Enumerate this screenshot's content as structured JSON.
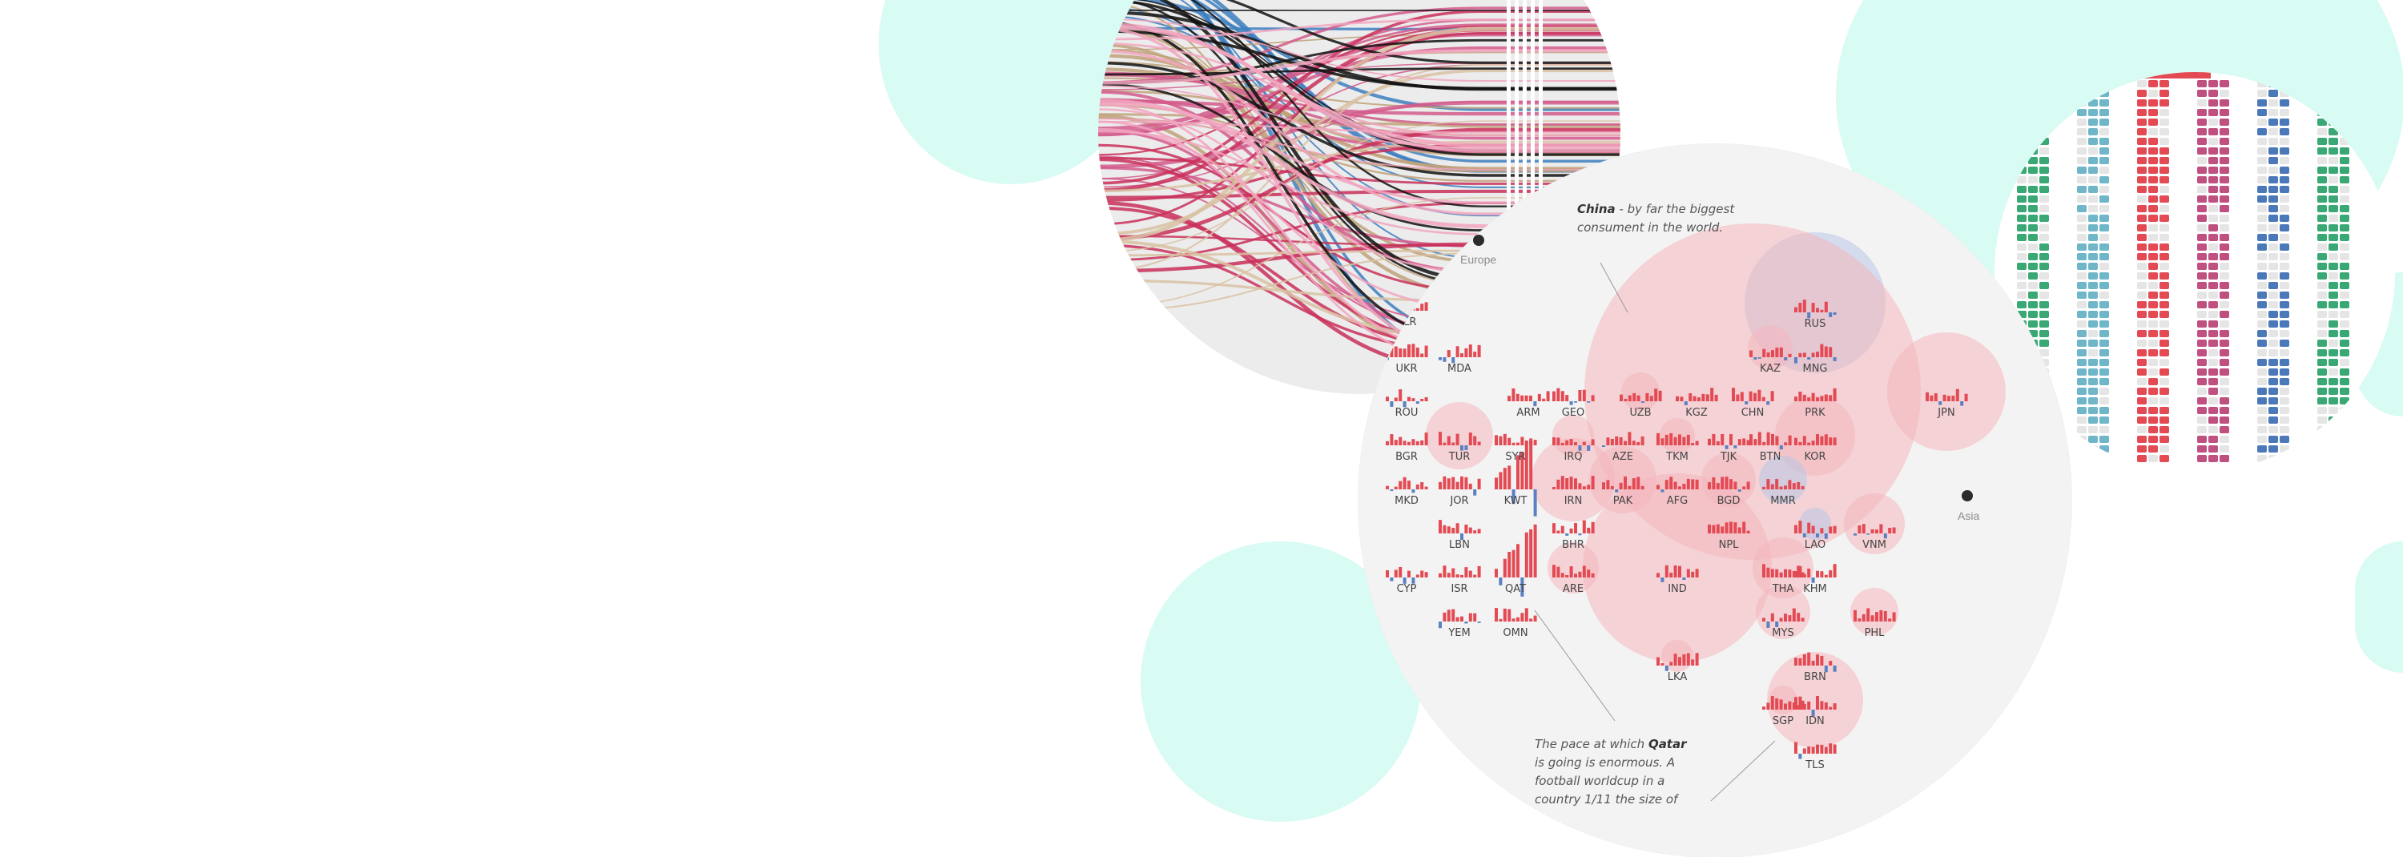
{
  "colors": {
    "mint": "#d8fbf3",
    "bubble": "#f4b7be",
    "bubble_blue": "#b8c7e6",
    "bar_red": "#e34a53",
    "bar_blue": "#5b7fc1",
    "lens_bg": "#f3f3f3"
  },
  "map": {
    "regions": {
      "europe": "Europe",
      "asia": "Asia"
    },
    "annotations": {
      "china": {
        "bold": "China",
        "text": " - by far the biggest consument in the world."
      },
      "qatar": {
        "prefix": "The pace at which ",
        "bold": "Qatar",
        "text": " is going is enormous. A football worldcup in a country 1/11 the size of"
      }
    },
    "countries": [
      {
        "code": "BLR",
        "bubble": 0
      },
      {
        "code": "RUS",
        "bubble": 88
      },
      {
        "code": "UKR",
        "bubble": 0
      },
      {
        "code": "MDA",
        "bubble": 0
      },
      {
        "code": "KAZ",
        "bubble": 28
      },
      {
        "code": "MNG",
        "bubble": 0
      },
      {
        "code": "ROU",
        "bubble": 0
      },
      {
        "code": "ARM",
        "bubble": 0
      },
      {
        "code": "GEO",
        "bubble": 0
      },
      {
        "code": "UZB",
        "bubble": 24
      },
      {
        "code": "KGZ",
        "bubble": 0
      },
      {
        "code": "CHN",
        "bubble": 210
      },
      {
        "code": "PRK",
        "bubble": 0
      },
      {
        "code": "JPN",
        "bubble": 74
      },
      {
        "code": "BGR",
        "bubble": 0
      },
      {
        "code": "TUR",
        "bubble": 42
      },
      {
        "code": "SYR",
        "bubble": 0
      },
      {
        "code": "IRQ",
        "bubble": 26
      },
      {
        "code": "AZE",
        "bubble": 0
      },
      {
        "code": "TKM",
        "bubble": 22
      },
      {
        "code": "TJK",
        "bubble": 0
      },
      {
        "code": "BTN",
        "bubble": 0
      },
      {
        "code": "KOR",
        "bubble": 50
      },
      {
        "code": "MKD",
        "bubble": 0
      },
      {
        "code": "JOR",
        "bubble": 0
      },
      {
        "code": "KWT",
        "bubble": 0
      },
      {
        "code": "IRN",
        "bubble": 52
      },
      {
        "code": "PAK",
        "bubble": 42
      },
      {
        "code": "AFG",
        "bubble": 0
      },
      {
        "code": "BGD",
        "bubble": 34
      },
      {
        "code": "MMR",
        "bubble": 30
      },
      {
        "code": "LBN",
        "bubble": 0
      },
      {
        "code": "BHR",
        "bubble": 0
      },
      {
        "code": "NPL",
        "bubble": 0
      },
      {
        "code": "LAO",
        "bubble": 20
      },
      {
        "code": "VNM",
        "bubble": 38
      },
      {
        "code": "CYP",
        "bubble": 0
      },
      {
        "code": "ISR",
        "bubble": 0
      },
      {
        "code": "QAT",
        "bubble": 0
      },
      {
        "code": "ARE",
        "bubble": 32
      },
      {
        "code": "IND",
        "bubble": 118
      },
      {
        "code": "THA",
        "bubble": 38
      },
      {
        "code": "KHM",
        "bubble": 0
      },
      {
        "code": "YEM",
        "bubble": 0
      },
      {
        "code": "OMN",
        "bubble": 0
      },
      {
        "code": "MYS",
        "bubble": 34
      },
      {
        "code": "PHL",
        "bubble": 30
      },
      {
        "code": "LKA",
        "bubble": 20
      },
      {
        "code": "BRN",
        "bubble": 0
      },
      {
        "code": "SGP",
        "bubble": 18
      },
      {
        "code": "IDN",
        "bubble": 60
      },
      {
        "code": "TLS",
        "bubble": 0
      }
    ]
  }
}
